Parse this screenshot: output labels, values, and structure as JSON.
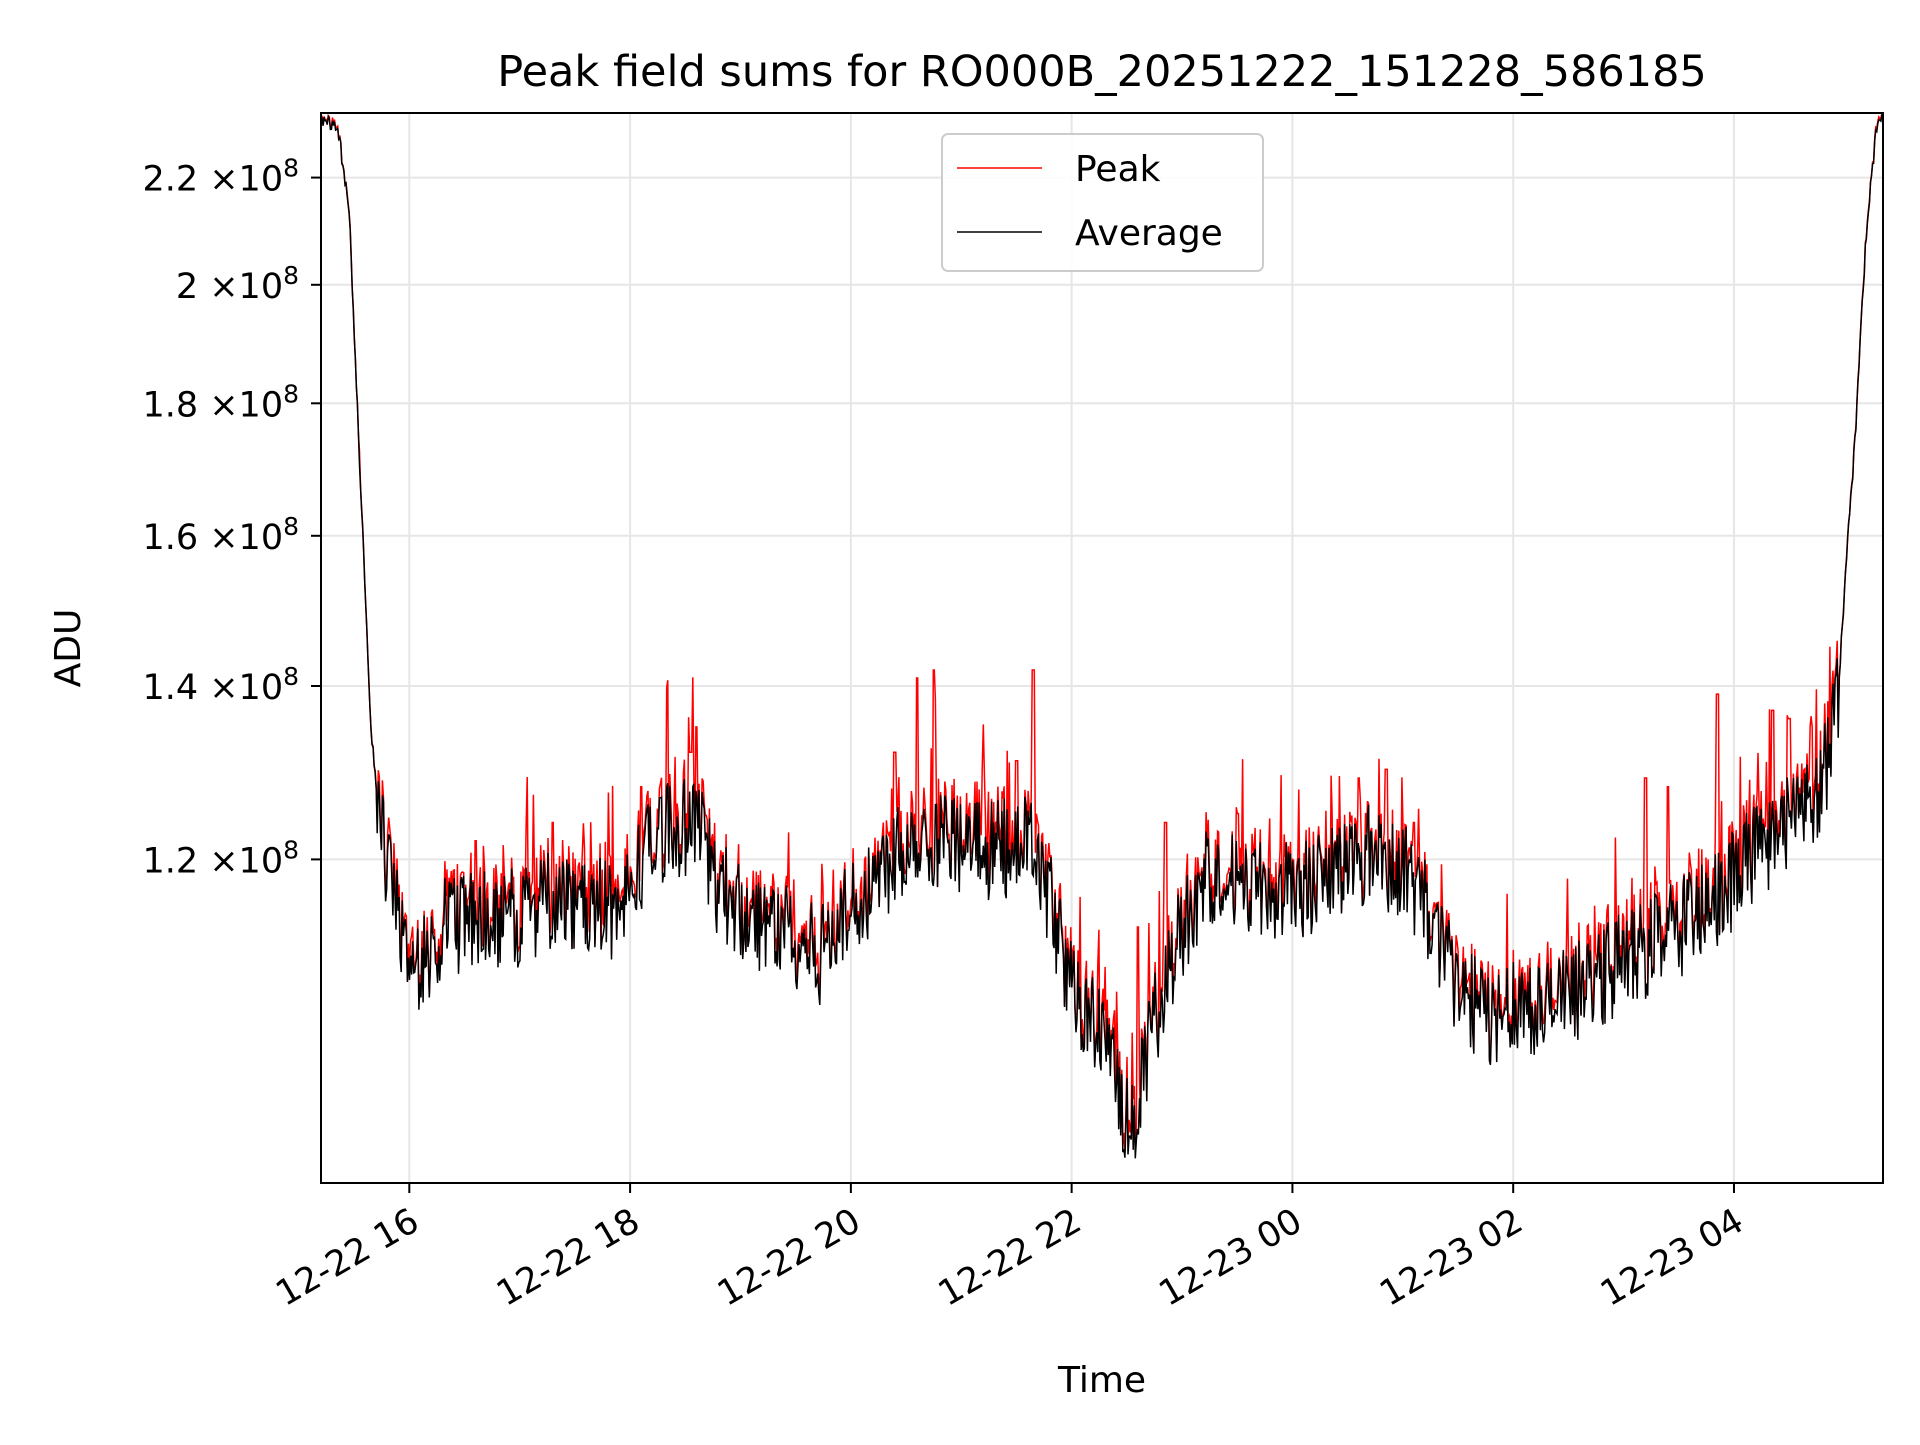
{
  "chart_data": {
    "type": "line",
    "title": "Peak field sums for RO000B_20251222_151228_586185",
    "xlabel": "Time",
    "ylabel": "ADU",
    "yscale": "log",
    "ylim": [
      90000000,
      233000000
    ],
    "xlim_hours": [
      15.2,
      29.35
    ],
    "grid": true,
    "legend_position": "upper-center",
    "x_ticks": [
      {
        "value": 16,
        "label": "12-22 16"
      },
      {
        "value": 18,
        "label": "12-22 18"
      },
      {
        "value": 20,
        "label": "12-22 20"
      },
      {
        "value": 22,
        "label": "12-22 22"
      },
      {
        "value": 24,
        "label": "12-23 00"
      },
      {
        "value": 26,
        "label": "12-23 02"
      },
      {
        "value": 28,
        "label": "12-23 04"
      }
    ],
    "y_ticks": [
      {
        "value": 120000000,
        "mantissa": "1.2",
        "exponent": "8"
      },
      {
        "value": 140000000,
        "mantissa": "1.4",
        "exponent": "8"
      },
      {
        "value": 160000000,
        "mantissa": "1.6",
        "exponent": "8"
      },
      {
        "value": 180000000,
        "mantissa": "1.8",
        "exponent": "8"
      },
      {
        "value": 200000000,
        "mantissa": "2",
        "exponent": "8"
      },
      {
        "value": 220000000,
        "mantissa": "2.2",
        "exponent": "8"
      }
    ],
    "times_label": "×10",
    "series": [
      {
        "name": "Peak",
        "color": "#ff0000"
      },
      {
        "name": "Average",
        "color": "#000000"
      }
    ],
    "baseline": [
      [
        15.2,
        232000000
      ],
      [
        15.35,
        230000000
      ],
      [
        15.45,
        215000000
      ],
      [
        15.55,
        170000000
      ],
      [
        15.65,
        135000000
      ],
      [
        15.75,
        122000000
      ],
      [
        15.85,
        116000000
      ],
      [
        16.0,
        108000000
      ],
      [
        16.3,
        113000000
      ],
      [
        16.6,
        114000000
      ],
      [
        17.0,
        114000000
      ],
      [
        17.3,
        116000000
      ],
      [
        17.6,
        116000000
      ],
      [
        17.9,
        114000000
      ],
      [
        18.1,
        120000000
      ],
      [
        18.3,
        123000000
      ],
      [
        18.6,
        124000000
      ],
      [
        18.8,
        117000000
      ],
      [
        19.1,
        114000000
      ],
      [
        19.4,
        113000000
      ],
      [
        19.7,
        110000000
      ],
      [
        20.0,
        115000000
      ],
      [
        20.3,
        119000000
      ],
      [
        20.6,
        123000000
      ],
      [
        21.0,
        122000000
      ],
      [
        21.3,
        121000000
      ],
      [
        21.6,
        122000000
      ],
      [
        21.8,
        116000000
      ],
      [
        22.0,
        107000000
      ],
      [
        22.3,
        102000000
      ],
      [
        22.55,
        94000000
      ],
      [
        22.75,
        104000000
      ],
      [
        23.0,
        113000000
      ],
      [
        23.2,
        118000000
      ],
      [
        23.5,
        118000000
      ],
      [
        23.8,
        117000000
      ],
      [
        24.1,
        117000000
      ],
      [
        24.4,
        119000000
      ],
      [
        24.7,
        121000000
      ],
      [
        25.0,
        119000000
      ],
      [
        25.2,
        115000000
      ],
      [
        25.5,
        107000000
      ],
      [
        25.8,
        104000000
      ],
      [
        26.0,
        106000000
      ],
      [
        26.3,
        105000000
      ],
      [
        26.6,
        107000000
      ],
      [
        26.9,
        109000000
      ],
      [
        27.2,
        111000000
      ],
      [
        27.5,
        113000000
      ],
      [
        27.8,
        115000000
      ],
      [
        28.0,
        118000000
      ],
      [
        28.2,
        121000000
      ],
      [
        28.5,
        124000000
      ],
      [
        28.8,
        128000000
      ],
      [
        28.95,
        140000000
      ],
      [
        29.1,
        175000000
      ],
      [
        29.2,
        210000000
      ],
      [
        29.3,
        232000000
      ],
      [
        29.35,
        233000000
      ]
    ],
    "spikes": [
      [
        16.6,
        122000000
      ],
      [
        17.3,
        124000000
      ],
      [
        18.1,
        128000000
      ],
      [
        18.55,
        132000000
      ],
      [
        18.6,
        135000000
      ],
      [
        20.4,
        132000000
      ],
      [
        20.6,
        141000000
      ],
      [
        20.75,
        142000000
      ],
      [
        21.2,
        130000000
      ],
      [
        21.5,
        131000000
      ],
      [
        21.65,
        142000000
      ],
      [
        22.6,
        113000000
      ],
      [
        22.85,
        124000000
      ],
      [
        23.5,
        125000000
      ],
      [
        24.6,
        129000000
      ],
      [
        24.85,
        130000000
      ],
      [
        25.1,
        124000000
      ],
      [
        27.2,
        129000000
      ],
      [
        27.4,
        128000000
      ],
      [
        27.85,
        139000000
      ],
      [
        28.35,
        137000000
      ],
      [
        28.5,
        136000000
      ],
      [
        28.7,
        135000000
      ]
    ]
  }
}
